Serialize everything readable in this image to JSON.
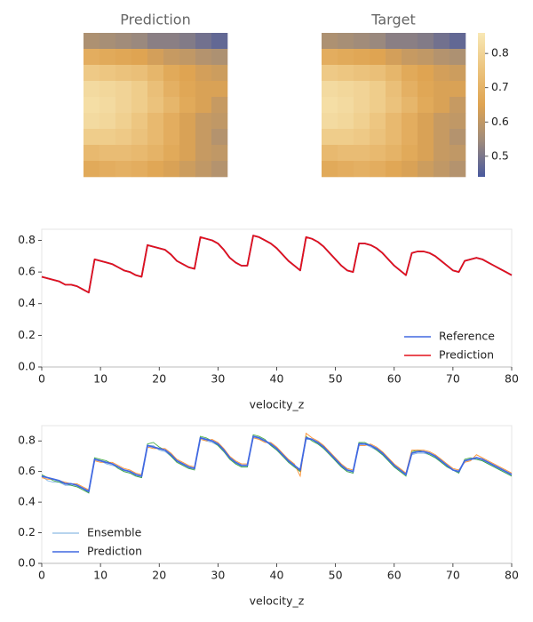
{
  "chart_data": [
    {
      "type": "heatmap",
      "title": "Prediction",
      "vlim": [
        0.44,
        0.86
      ],
      "colormap": [
        "#4a5a9e",
        "#9e8b7c",
        "#dfa452",
        "#ecc47e",
        "#f8e8b5"
      ],
      "z": [
        [
          0.57,
          0.56,
          0.55,
          0.54,
          0.52,
          0.52,
          0.51,
          0.49,
          0.47
        ],
        [
          0.68,
          0.67,
          0.66,
          0.65,
          0.63,
          0.61,
          0.6,
          0.58,
          0.57
        ],
        [
          0.77,
          0.76,
          0.75,
          0.74,
          0.71,
          0.67,
          0.65,
          0.63,
          0.62
        ],
        [
          0.82,
          0.81,
          0.8,
          0.78,
          0.74,
          0.69,
          0.66,
          0.64,
          0.64
        ],
        [
          0.83,
          0.82,
          0.8,
          0.78,
          0.75,
          0.71,
          0.67,
          0.64,
          0.61
        ],
        [
          0.82,
          0.81,
          0.79,
          0.76,
          0.72,
          0.68,
          0.64,
          0.61,
          0.6
        ],
        [
          0.78,
          0.78,
          0.77,
          0.75,
          0.72,
          0.68,
          0.64,
          0.61,
          0.58
        ],
        [
          0.72,
          0.73,
          0.73,
          0.72,
          0.7,
          0.67,
          0.64,
          0.61,
          0.6
        ],
        [
          0.67,
          0.68,
          0.69,
          0.68,
          0.66,
          0.64,
          0.62,
          0.6,
          0.58
        ]
      ]
    },
    {
      "type": "heatmap",
      "title": "Target",
      "vlim": [
        0.44,
        0.86
      ],
      "colormap": [
        "#4a5a9e",
        "#9e8b7c",
        "#dfa452",
        "#ecc47e",
        "#f8e8b5"
      ],
      "colorbar_ticks": [
        0.5,
        0.6,
        0.7,
        0.8
      ],
      "z": [
        [
          0.57,
          0.56,
          0.55,
          0.54,
          0.52,
          0.52,
          0.51,
          0.49,
          0.47
        ],
        [
          0.68,
          0.67,
          0.66,
          0.65,
          0.63,
          0.61,
          0.6,
          0.58,
          0.57
        ],
        [
          0.77,
          0.76,
          0.75,
          0.74,
          0.71,
          0.67,
          0.65,
          0.63,
          0.62
        ],
        [
          0.82,
          0.81,
          0.8,
          0.78,
          0.74,
          0.69,
          0.66,
          0.64,
          0.64
        ],
        [
          0.83,
          0.82,
          0.8,
          0.78,
          0.75,
          0.71,
          0.67,
          0.64,
          0.61
        ],
        [
          0.82,
          0.81,
          0.79,
          0.76,
          0.72,
          0.68,
          0.64,
          0.61,
          0.6
        ],
        [
          0.78,
          0.78,
          0.77,
          0.75,
          0.72,
          0.68,
          0.64,
          0.61,
          0.58
        ],
        [
          0.72,
          0.73,
          0.73,
          0.72,
          0.7,
          0.67,
          0.64,
          0.61,
          0.6
        ],
        [
          0.67,
          0.68,
          0.69,
          0.68,
          0.66,
          0.64,
          0.62,
          0.6,
          0.58
        ]
      ]
    },
    {
      "type": "line",
      "x_label": "velocity_z",
      "xlim": [
        0,
        80
      ],
      "xticks": [
        0,
        10,
        20,
        30,
        40,
        50,
        60,
        70,
        80
      ],
      "ylim": [
        0,
        0.87
      ],
      "yticks": [
        {
          "value": 0,
          "label": "0.0"
        },
        0.2,
        0.4,
        0.6,
        0.8
      ],
      "legend": "lower right",
      "x": [
        0,
        1,
        2,
        3,
        4,
        5,
        6,
        7,
        8,
        9,
        10,
        11,
        12,
        13,
        14,
        15,
        16,
        17,
        18,
        19,
        20,
        21,
        22,
        23,
        24,
        25,
        26,
        27,
        28,
        29,
        30,
        31,
        32,
        33,
        34,
        35,
        36,
        37,
        38,
        39,
        40,
        41,
        42,
        43,
        44,
        45,
        46,
        47,
        48,
        49,
        50,
        51,
        52,
        53,
        54,
        55,
        56,
        57,
        58,
        59,
        60,
        61,
        62,
        63,
        64,
        65,
        66,
        67,
        68,
        69,
        70,
        71,
        72,
        73,
        74,
        75,
        76,
        77,
        78,
        79,
        80
      ],
      "series": [
        {
          "name": "Reference",
          "color": "#4169e1",
          "values": [
            0.57,
            0.56,
            0.55,
            0.54,
            0.52,
            0.52,
            0.51,
            0.49,
            0.47,
            0.68,
            0.67,
            0.66,
            0.65,
            0.63,
            0.61,
            0.6,
            0.58,
            0.57,
            0.77,
            0.76,
            0.75,
            0.74,
            0.71,
            0.67,
            0.65,
            0.63,
            0.62,
            0.82,
            0.81,
            0.8,
            0.78,
            0.74,
            0.69,
            0.66,
            0.64,
            0.64,
            0.83,
            0.82,
            0.8,
            0.78,
            0.75,
            0.71,
            0.67,
            0.64,
            0.61,
            0.82,
            0.81,
            0.79,
            0.76,
            0.72,
            0.68,
            0.64,
            0.61,
            0.6,
            0.78,
            0.78,
            0.77,
            0.75,
            0.72,
            0.68,
            0.64,
            0.61,
            0.58,
            0.72,
            0.73,
            0.73,
            0.72,
            0.7,
            0.67,
            0.64,
            0.61,
            0.6,
            0.67,
            0.68,
            0.69,
            0.68,
            0.66,
            0.64,
            0.62,
            0.6,
            0.58
          ]
        },
        {
          "name": "Prediction",
          "color": "#e3111b",
          "values": [
            0.57,
            0.56,
            0.55,
            0.54,
            0.52,
            0.52,
            0.51,
            0.49,
            0.47,
            0.68,
            0.67,
            0.66,
            0.65,
            0.63,
            0.61,
            0.6,
            0.58,
            0.57,
            0.77,
            0.76,
            0.75,
            0.74,
            0.71,
            0.67,
            0.65,
            0.63,
            0.62,
            0.82,
            0.81,
            0.8,
            0.78,
            0.74,
            0.69,
            0.66,
            0.64,
            0.64,
            0.83,
            0.82,
            0.8,
            0.78,
            0.75,
            0.71,
            0.67,
            0.64,
            0.61,
            0.82,
            0.81,
            0.79,
            0.76,
            0.72,
            0.68,
            0.64,
            0.61,
            0.6,
            0.78,
            0.78,
            0.77,
            0.75,
            0.72,
            0.68,
            0.64,
            0.61,
            0.58,
            0.72,
            0.73,
            0.73,
            0.72,
            0.7,
            0.67,
            0.64,
            0.61,
            0.6,
            0.67,
            0.68,
            0.69,
            0.68,
            0.66,
            0.64,
            0.62,
            0.6,
            0.58
          ]
        }
      ]
    },
    {
      "type": "line",
      "x_label": "velocity_z",
      "xlim": [
        0,
        80
      ],
      "xticks": [
        0,
        10,
        20,
        30,
        40,
        50,
        60,
        70,
        80
      ],
      "ylim": [
        0,
        0.9
      ],
      "yticks": [
        {
          "value": 0,
          "label": "0.0"
        },
        0.2,
        0.4,
        0.6,
        0.8
      ],
      "legend": "lower left",
      "x": [
        0,
        1,
        2,
        3,
        4,
        5,
        6,
        7,
        8,
        9,
        10,
        11,
        12,
        13,
        14,
        15,
        16,
        17,
        18,
        19,
        20,
        21,
        22,
        23,
        24,
        25,
        26,
        27,
        28,
        29,
        30,
        31,
        32,
        33,
        34,
        35,
        36,
        37,
        38,
        39,
        40,
        41,
        42,
        43,
        44,
        45,
        46,
        47,
        48,
        49,
        50,
        51,
        52,
        53,
        54,
        55,
        56,
        57,
        58,
        59,
        60,
        61,
        62,
        63,
        64,
        65,
        66,
        67,
        68,
        69,
        70,
        71,
        72,
        73,
        74,
        75,
        76,
        77,
        78,
        79,
        80
      ],
      "ensemble": {
        "name": "Ensemble",
        "colors": [
          "#6fa8dc",
          "#2ca02c",
          "#ff7f0e"
        ],
        "members": [
          [
            0.57,
            0.54,
            0.53,
            0.53,
            0.51,
            0.51,
            0.5,
            0.49,
            0.46,
            0.68,
            0.67,
            0.65,
            0.64,
            0.63,
            0.6,
            0.59,
            0.57,
            0.56,
            0.77,
            0.77,
            0.74,
            0.73,
            0.7,
            0.67,
            0.64,
            0.62,
            0.62,
            0.82,
            0.8,
            0.79,
            0.77,
            0.73,
            0.69,
            0.65,
            0.63,
            0.63,
            0.83,
            0.81,
            0.8,
            0.77,
            0.74,
            0.71,
            0.66,
            0.63,
            0.6,
            0.81,
            0.81,
            0.78,
            0.75,
            0.72,
            0.67,
            0.63,
            0.6,
            0.59,
            0.79,
            0.78,
            0.76,
            0.74,
            0.71,
            0.67,
            0.63,
            0.6,
            0.58,
            0.71,
            0.72,
            0.72,
            0.71,
            0.69,
            0.66,
            0.63,
            0.61,
            0.59,
            0.67,
            0.68,
            0.68,
            0.67,
            0.65,
            0.63,
            0.61,
            0.59,
            0.57
          ],
          [
            0.58,
            0.56,
            0.54,
            0.53,
            0.52,
            0.51,
            0.5,
            0.48,
            0.46,
            0.69,
            0.68,
            0.67,
            0.65,
            0.62,
            0.6,
            0.59,
            0.57,
            0.56,
            0.78,
            0.79,
            0.76,
            0.74,
            0.7,
            0.66,
            0.64,
            0.62,
            0.61,
            0.83,
            0.82,
            0.8,
            0.77,
            0.73,
            0.68,
            0.65,
            0.63,
            0.63,
            0.84,
            0.83,
            0.81,
            0.77,
            0.74,
            0.7,
            0.66,
            0.63,
            0.6,
            0.83,
            0.8,
            0.78,
            0.75,
            0.71,
            0.67,
            0.63,
            0.6,
            0.59,
            0.79,
            0.79,
            0.77,
            0.74,
            0.71,
            0.67,
            0.63,
            0.6,
            0.57,
            0.73,
            0.74,
            0.73,
            0.71,
            0.69,
            0.66,
            0.63,
            0.61,
            0.59,
            0.68,
            0.69,
            0.68,
            0.67,
            0.65,
            0.63,
            0.61,
            0.59,
            0.57
          ],
          [
            0.56,
            0.55,
            0.55,
            0.54,
            0.53,
            0.52,
            0.52,
            0.5,
            0.48,
            0.67,
            0.66,
            0.66,
            0.66,
            0.64,
            0.62,
            0.61,
            0.59,
            0.58,
            0.76,
            0.75,
            0.75,
            0.75,
            0.72,
            0.68,
            0.66,
            0.64,
            0.63,
            0.81,
            0.8,
            0.81,
            0.79,
            0.75,
            0.7,
            0.67,
            0.65,
            0.65,
            0.82,
            0.81,
            0.79,
            0.79,
            0.76,
            0.72,
            0.68,
            0.65,
            0.57,
            0.85,
            0.82,
            0.8,
            0.77,
            0.73,
            0.69,
            0.65,
            0.62,
            0.61,
            0.77,
            0.77,
            0.78,
            0.76,
            0.73,
            0.69,
            0.65,
            0.62,
            0.59,
            0.74,
            0.74,
            0.74,
            0.73,
            0.71,
            0.68,
            0.65,
            0.62,
            0.61,
            0.66,
            0.67,
            0.71,
            0.69,
            0.67,
            0.65,
            0.63,
            0.61,
            0.59
          ]
        ]
      },
      "series": [
        {
          "name": "Prediction",
          "color": "#4169e1",
          "values": [
            0.57,
            0.56,
            0.55,
            0.54,
            0.52,
            0.52,
            0.51,
            0.49,
            0.47,
            0.68,
            0.67,
            0.66,
            0.65,
            0.63,
            0.61,
            0.6,
            0.58,
            0.57,
            0.77,
            0.76,
            0.75,
            0.74,
            0.71,
            0.67,
            0.65,
            0.63,
            0.62,
            0.82,
            0.81,
            0.8,
            0.78,
            0.74,
            0.69,
            0.66,
            0.64,
            0.64,
            0.83,
            0.82,
            0.8,
            0.78,
            0.75,
            0.71,
            0.67,
            0.64,
            0.61,
            0.82,
            0.81,
            0.79,
            0.76,
            0.72,
            0.68,
            0.64,
            0.61,
            0.6,
            0.78,
            0.78,
            0.77,
            0.75,
            0.72,
            0.68,
            0.64,
            0.61,
            0.58,
            0.72,
            0.73,
            0.73,
            0.72,
            0.7,
            0.67,
            0.64,
            0.61,
            0.6,
            0.67,
            0.68,
            0.69,
            0.68,
            0.66,
            0.64,
            0.62,
            0.6,
            0.58
          ]
        }
      ]
    }
  ]
}
